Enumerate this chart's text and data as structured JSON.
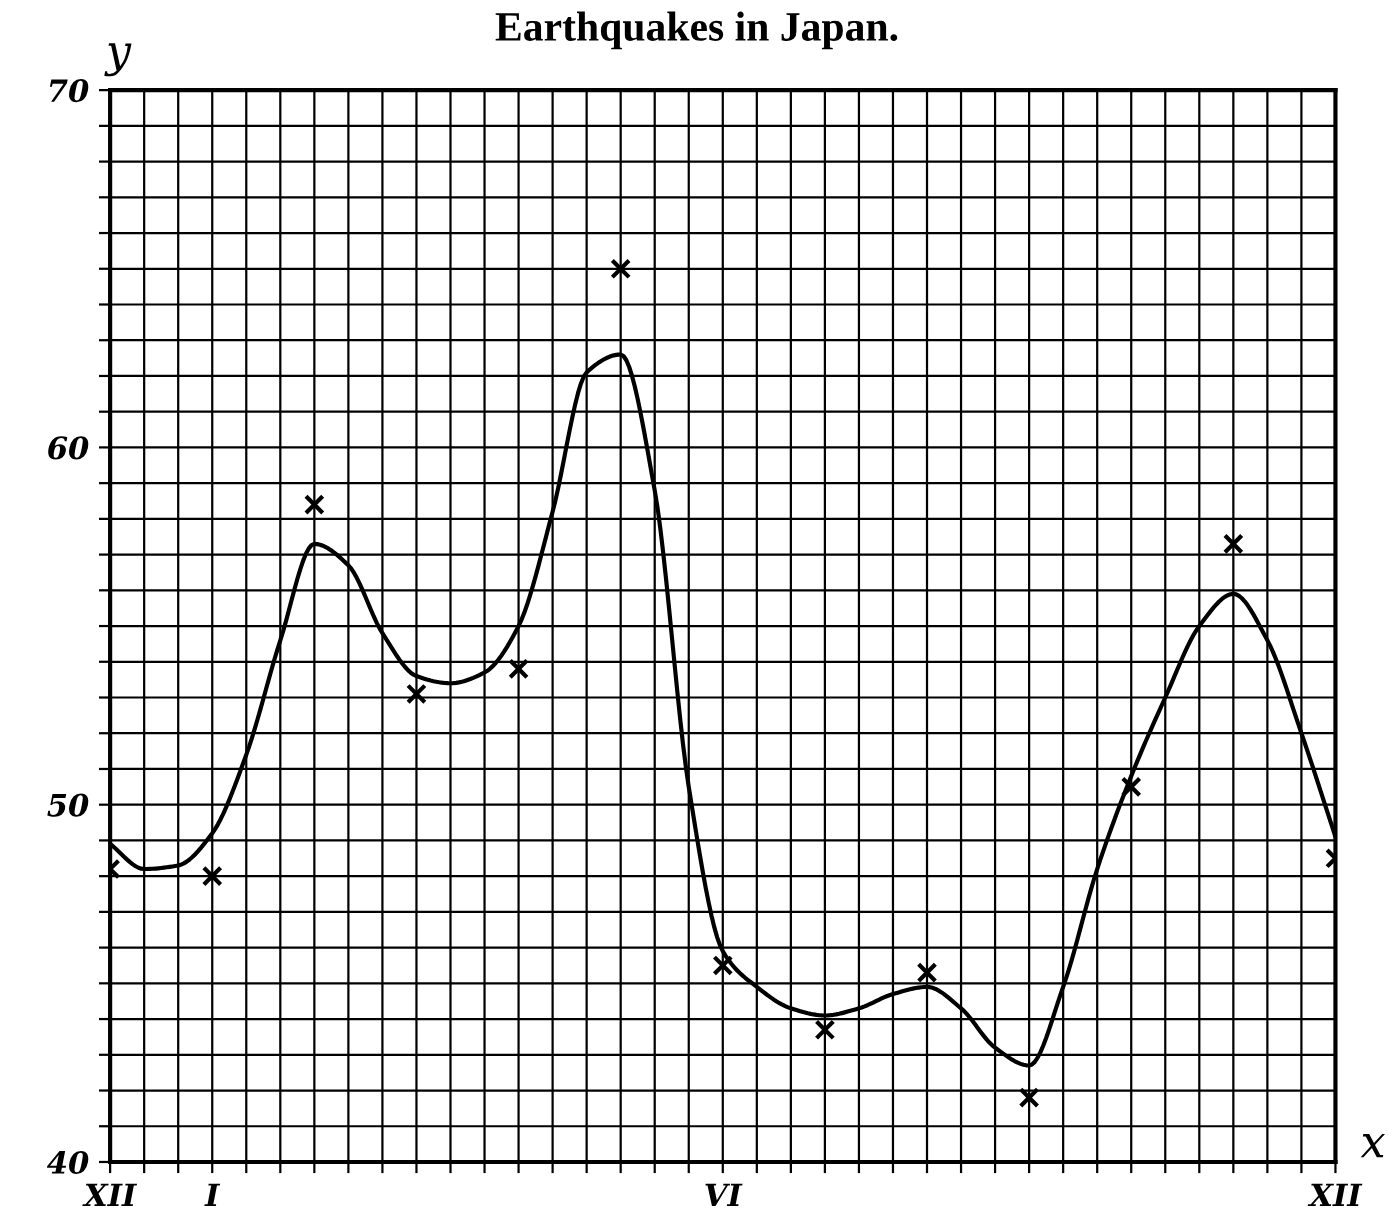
{
  "chart_data": {
    "type": "scatter",
    "title": "Earthquakes in Japan.",
    "xlabel": "x",
    "ylabel": "y",
    "categories": [
      "XII",
      null,
      null,
      "I",
      null,
      null,
      null,
      null,
      null,
      null,
      null,
      null,
      null,
      null,
      null,
      null,
      null,
      null,
      "VI",
      null,
      null,
      null,
      null,
      null,
      null,
      null,
      null,
      null,
      null,
      null,
      null,
      null,
      null,
      null,
      null,
      null,
      "XII"
    ],
    "ylim": [
      40,
      70
    ],
    "yticks": [
      40,
      {
        "value": 41,
        "label": null
      },
      {
        "value": 42,
        "label": null
      },
      {
        "value": 43,
        "label": null
      },
      {
        "value": 44,
        "label": null
      },
      {
        "value": 45,
        "label": null
      },
      {
        "value": 46,
        "label": null
      },
      {
        "value": 47,
        "label": null
      },
      {
        "value": 48,
        "label": null
      },
      {
        "value": 49,
        "label": null
      },
      50,
      {
        "value": 51,
        "label": null
      },
      {
        "value": 52,
        "label": null
      },
      {
        "value": 53,
        "label": null
      },
      {
        "value": 54,
        "label": null
      },
      {
        "value": 55,
        "label": null
      },
      {
        "value": 56,
        "label": null
      },
      {
        "value": 57,
        "label": null
      },
      {
        "value": 58,
        "label": null
      },
      {
        "value": 59,
        "label": null
      },
      60,
      {
        "value": 61,
        "label": null
      },
      {
        "value": 62,
        "label": null
      },
      {
        "value": 63,
        "label": null
      },
      {
        "value": 64,
        "label": null
      },
      {
        "value": 65,
        "label": null
      },
      {
        "value": 66,
        "label": null
      },
      {
        "value": 67,
        "label": null
      },
      {
        "value": 68,
        "label": null
      },
      {
        "value": 69,
        "label": null
      },
      70
    ],
    "grid": true,
    "legend": false,
    "series": [
      {
        "marker": "cross",
        "color": "#000000",
        "values": [
          48.2,
          null,
          null,
          48.0,
          null,
          null,
          58.4,
          null,
          null,
          53.1,
          null,
          null,
          53.8,
          null,
          null,
          65.0,
          null,
          null,
          45.5,
          null,
          null,
          43.7,
          null,
          null,
          45.3,
          null,
          null,
          41.8,
          null,
          null,
          50.5,
          null,
          null,
          57.3,
          null,
          null,
          48.5
        ]
      },
      {
        "type": "line",
        "marker": "none",
        "line_style": "solid",
        "color": "#000000",
        "values": [
          48.9,
          48.2,
          48.3,
          49.2,
          51.4,
          54.6,
          57.3,
          56.7,
          54.8,
          53.6,
          53.4,
          53.7,
          55.0,
          58.2,
          62.1,
          62.6,
          58.8,
          50.5,
          45.9,
          44.9,
          44.3,
          44.1,
          44.3,
          44.7,
          44.9,
          44.3,
          43.2,
          42.7,
          44.9,
          48.2,
          50.8,
          53.0,
          55.0,
          55.9,
          54.6,
          52.0,
          49.1
        ]
      }
    ]
  }
}
